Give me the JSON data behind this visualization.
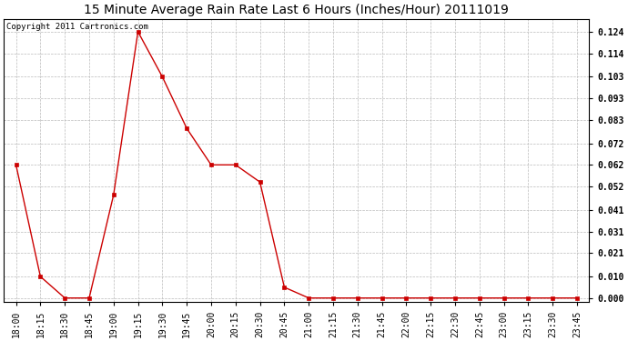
{
  "title": "15 Minute Average Rain Rate Last 6 Hours (Inches/Hour) 20111019",
  "copyright": "Copyright 2011 Cartronics.com",
  "background_color": "#ffffff",
  "plot_bg_color": "#ffffff",
  "line_color": "#cc0000",
  "marker_color": "#cc0000",
  "grid_color": "#bbbbbb",
  "x_labels": [
    "18:00",
    "18:15",
    "18:30",
    "18:45",
    "19:00",
    "19:15",
    "19:30",
    "19:45",
    "20:00",
    "20:15",
    "20:30",
    "20:45",
    "21:00",
    "21:15",
    "21:30",
    "21:45",
    "22:00",
    "22:15",
    "22:30",
    "22:45",
    "23:00",
    "23:15",
    "23:30",
    "23:45"
  ],
  "y_values": [
    0.062,
    0.01,
    0.0,
    0.0,
    0.048,
    0.124,
    0.103,
    0.079,
    0.062,
    0.062,
    0.054,
    0.005,
    0.0,
    0.0,
    0.0,
    0.0,
    0.0,
    0.0,
    0.0,
    0.0,
    0.0,
    0.0,
    0.0,
    0.0
  ],
  "y_ticks": [
    0.0,
    0.01,
    0.021,
    0.031,
    0.041,
    0.052,
    0.062,
    0.072,
    0.083,
    0.093,
    0.103,
    0.114,
    0.124
  ],
  "ylim": [
    -0.002,
    0.13
  ],
  "title_fontsize": 10,
  "tick_fontsize": 7,
  "copyright_fontsize": 6.5
}
